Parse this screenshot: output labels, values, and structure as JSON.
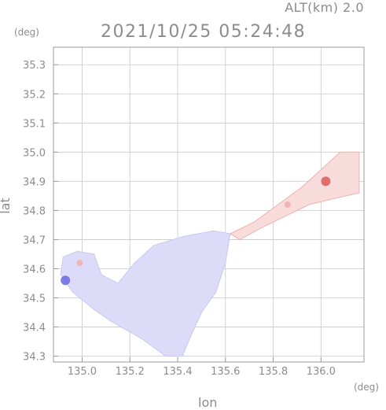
{
  "header": {
    "altitude_label": "ALT(km) 2.0",
    "timestamp": "2021/10/25 05:24:48"
  },
  "chart_data": {
    "type": "heatmap",
    "xlabel": "lon",
    "ylabel": "lat",
    "x_unit": "(deg)",
    "y_unit": "(deg)",
    "xlim": [
      134.88,
      136.18
    ],
    "ylim": [
      34.28,
      35.36
    ],
    "x_ticks": [
      135.0,
      135.2,
      135.4,
      135.6,
      135.8,
      136.0
    ],
    "x_tick_labels": [
      "135.0",
      "135.2",
      "135.4",
      "135.6",
      "135.8",
      "136.0"
    ],
    "y_ticks": [
      34.3,
      34.4,
      34.5,
      34.6,
      34.7,
      34.8,
      34.9,
      35.0,
      35.1,
      35.2,
      35.3
    ],
    "y_tick_labels": [
      "34.3",
      "34.4",
      "34.5",
      "34.6",
      "34.7",
      "34.8",
      "34.9",
      "35.0",
      "35.1",
      "35.2",
      "35.3"
    ],
    "grid": true,
    "colors": {
      "negative_light": "#dcdcf8",
      "negative_mid": "#c8c8f2",
      "negative_strong": "#7070e0",
      "positive_light": "#f8dcdc",
      "positive_mid": "#f0b0b0",
      "positive_strong": "#e06060",
      "grid": "#c8c8c8",
      "frame": "#9a9a9a"
    },
    "regions": [
      {
        "name": "bay-main",
        "sign": "negative",
        "polygon": [
          [
            134.92,
            34.64
          ],
          [
            134.98,
            34.66
          ],
          [
            135.05,
            34.65
          ],
          [
            135.08,
            34.58
          ],
          [
            135.15,
            34.55
          ],
          [
            135.22,
            34.62
          ],
          [
            135.3,
            34.68
          ],
          [
            135.42,
            34.71
          ],
          [
            135.55,
            34.73
          ],
          [
            135.62,
            34.72
          ],
          [
            135.6,
            34.62
          ],
          [
            135.56,
            34.52
          ],
          [
            135.5,
            34.45
          ],
          [
            135.45,
            34.36
          ],
          [
            135.42,
            34.3
          ],
          [
            135.35,
            34.3
          ],
          [
            135.25,
            34.36
          ],
          [
            135.12,
            34.42
          ],
          [
            135.05,
            34.46
          ],
          [
            134.96,
            34.52
          ],
          [
            134.91,
            34.58
          ]
        ]
      },
      {
        "name": "river-channel",
        "sign": "positive",
        "polygon": [
          [
            135.62,
            34.72
          ],
          [
            135.72,
            34.76
          ],
          [
            135.82,
            34.82
          ],
          [
            135.92,
            34.88
          ],
          [
            136.0,
            34.94
          ],
          [
            136.08,
            35.0
          ],
          [
            136.16,
            35.0
          ],
          [
            136.16,
            34.86
          ],
          [
            136.05,
            34.84
          ],
          [
            135.95,
            34.82
          ],
          [
            135.85,
            34.78
          ],
          [
            135.75,
            34.74
          ],
          [
            135.66,
            34.7
          ]
        ]
      }
    ],
    "hotspots": [
      {
        "lon": 134.93,
        "lat": 34.56,
        "sign": "negative",
        "level": "strong"
      },
      {
        "lon": 134.99,
        "lat": 34.62,
        "sign": "positive",
        "level": "mid"
      },
      {
        "lon": 136.02,
        "lat": 34.9,
        "sign": "positive",
        "level": "strong"
      },
      {
        "lon": 135.86,
        "lat": 34.82,
        "sign": "positive",
        "level": "mid"
      }
    ]
  }
}
